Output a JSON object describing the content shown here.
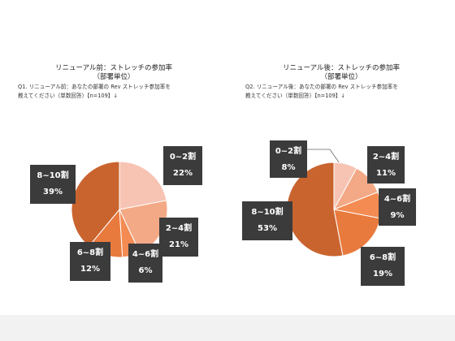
{
  "chart_data": [
    {
      "type": "pie",
      "title": "リニューアル前：ストレッチの参加率",
      "subtitle": "（部署単位）",
      "question_line1": "Q1. リニューアル前：あなたの部署の Rev ストレッチ参加率を",
      "question_line2": "教えてください（単数回答）【n=109】↓",
      "slices": [
        {
          "label": "0~2割",
          "pct_text": "22%",
          "value": 22,
          "color": "#f7c4b4"
        },
        {
          "label": "2~4割",
          "pct_text": "21%",
          "value": 21,
          "color": "#f4a986"
        },
        {
          "label": "4~6割",
          "pct_text": "6%",
          "value": 6,
          "color": "#f38b52"
        },
        {
          "label": "6~8割",
          "pct_text": "12%",
          "value": 12,
          "color": "#e97a3e"
        },
        {
          "label": "8~10割",
          "pct_text": "39%",
          "value": 39,
          "color": "#c9642f"
        }
      ]
    },
    {
      "type": "pie",
      "title": "リニューアル後：ストレッチの参加率",
      "subtitle": "（部署単位）",
      "question_line1": "Q2. リニューアル後：あなたの部署の Rev ストレッチ参加率を",
      "question_line2": "教えてください（単数回答）【n=109】↓",
      "slices": [
        {
          "label": "0~2割",
          "pct_text": "8%",
          "value": 8,
          "color": "#f7c4b4"
        },
        {
          "label": "2~4割",
          "pct_text": "11%",
          "value": 11,
          "color": "#f4a986"
        },
        {
          "label": "4~6割",
          "pct_text": "9%",
          "value": 9,
          "color": "#f38b52"
        },
        {
          "label": "6~8割",
          "pct_text": "19%",
          "value": 19,
          "color": "#e97a3e"
        },
        {
          "label": "8~10割",
          "pct_text": "53%",
          "value": 53,
          "color": "#c9642f"
        }
      ]
    }
  ]
}
